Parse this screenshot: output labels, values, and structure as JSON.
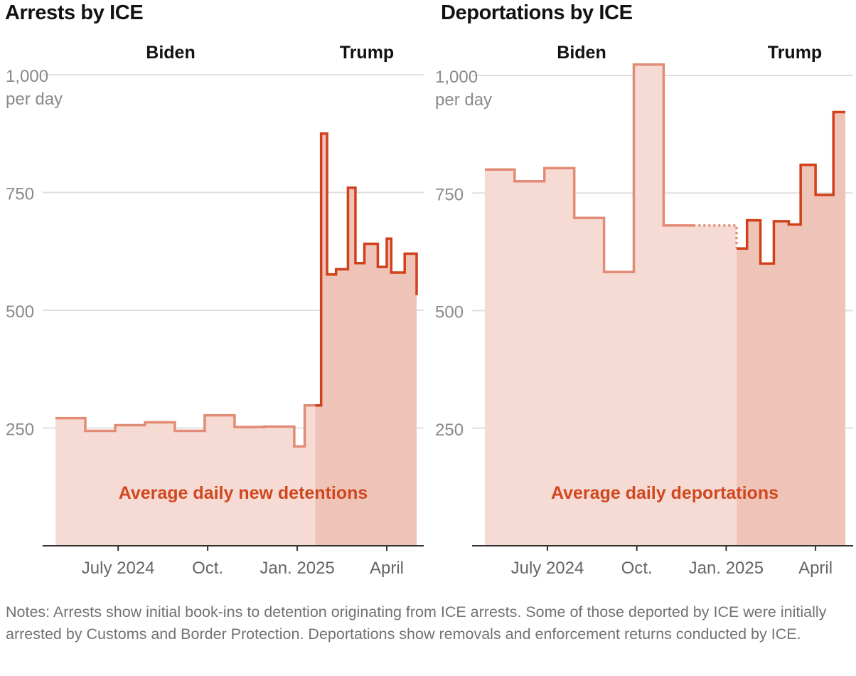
{
  "colors": {
    "biden_line": "#e28b76",
    "biden_fill": "#f5dbd4",
    "trump_line": "#d1401b",
    "trump_fill": "#efc4b8",
    "grid": "#e0e0e0",
    "axis": "#333333"
  },
  "notes": "Notes: Arrests show initial book-ins to detention originating from ICE arrests. Some of those deported by ICE were initially arrested by Customs and Border Protection. Deportations show removals and enforcement returns conducted by ICE.",
  "chart_data": [
    {
      "type": "area",
      "title": "Arrests by ICE",
      "series_label": "Average daily new detentions",
      "period_labels": [
        "Biden",
        "Trump"
      ],
      "y_unit_label": "per day",
      "y_ticks": [
        {
          "value": 1000,
          "label": "1,000"
        },
        {
          "value": 750,
          "label": "750"
        },
        {
          "value": 500,
          "label": "500"
        },
        {
          "value": 250,
          "label": "250"
        }
      ],
      "x_ticks": [
        {
          "month": 6.5,
          "label": "July 2024"
        },
        {
          "month": 9.5,
          "label": "Oct."
        },
        {
          "month": 12.5,
          "label": "Jan. 2025"
        },
        {
          "month": 15.5,
          "label": "April"
        }
      ],
      "xlim": [
        4.4,
        16.5
      ],
      "ylim": [
        0,
        1000
      ],
      "transition_month": 13.1,
      "biden_steps": [
        {
          "start": 4.4,
          "value": 271
        },
        {
          "start": 5.4,
          "value": 244
        },
        {
          "start": 6.4,
          "value": 256
        },
        {
          "start": 7.4,
          "value": 262
        },
        {
          "start": 8.4,
          "value": 244
        },
        {
          "start": 9.4,
          "value": 277
        },
        {
          "start": 10.4,
          "value": 252
        },
        {
          "start": 11.4,
          "value": 253
        },
        {
          "start": 12.4,
          "value": 211
        },
        {
          "start": 12.75,
          "value": 298
        }
      ],
      "biden_end": 13.1,
      "trump_steps": [
        {
          "start": 13.1,
          "value": 298
        },
        {
          "start": 13.3,
          "value": 875
        },
        {
          "start": 13.5,
          "value": 576
        },
        {
          "start": 13.8,
          "value": 587
        },
        {
          "start": 14.2,
          "value": 760
        },
        {
          "start": 14.45,
          "value": 600
        },
        {
          "start": 14.75,
          "value": 641
        },
        {
          "start": 15.2,
          "value": 592
        },
        {
          "start": 15.5,
          "value": 652
        },
        {
          "start": 15.65,
          "value": 580
        },
        {
          "start": 16.1,
          "value": 620
        },
        {
          "start": 16.5,
          "value": 532
        }
      ],
      "trump_end": 16.5
    },
    {
      "type": "area",
      "title": "Deportations by ICE",
      "series_label": "Average daily deportations",
      "period_labels": [
        "Biden",
        "Trump"
      ],
      "y_unit_label": "per day",
      "y_ticks": [
        {
          "value": 1000,
          "label": "1,000"
        },
        {
          "value": 750,
          "label": "750"
        },
        {
          "value": 500,
          "label": "500"
        },
        {
          "value": 250,
          "label": "250"
        }
      ],
      "x_ticks": [
        {
          "month": 6.5,
          "label": "July 2024"
        },
        {
          "month": 9.5,
          "label": "Oct."
        },
        {
          "month": 12.5,
          "label": "Jan. 2025"
        },
        {
          "month": 15.5,
          "label": "April"
        }
      ],
      "xlim": [
        4.4,
        16.5
      ],
      "ylim": [
        0,
        1000
      ],
      "transition_month": 13.1,
      "biden_steps": [
        {
          "start": 4.4,
          "value": 800
        },
        {
          "start": 5.4,
          "value": 775
        },
        {
          "start": 6.4,
          "value": 803
        },
        {
          "start": 7.4,
          "value": 697
        },
        {
          "start": 8.4,
          "value": 582
        },
        {
          "start": 9.4,
          "value": 1023
        },
        {
          "start": 10.4,
          "value": 681
        }
      ],
      "biden_end": 11.4,
      "gap": {
        "from": 11.4,
        "to": 12.85,
        "value": 681,
        "drop_to": 632
      },
      "trump_steps": [
        {
          "start": 12.85,
          "value": 632
        },
        {
          "start": 13.2,
          "value": 692
        },
        {
          "start": 13.65,
          "value": 600
        },
        {
          "start": 14.1,
          "value": 690
        },
        {
          "start": 14.6,
          "value": 683
        },
        {
          "start": 15.0,
          "value": 810
        },
        {
          "start": 15.5,
          "value": 746
        },
        {
          "start": 16.1,
          "value": 922
        }
      ],
      "trump_end": 16.5
    }
  ]
}
